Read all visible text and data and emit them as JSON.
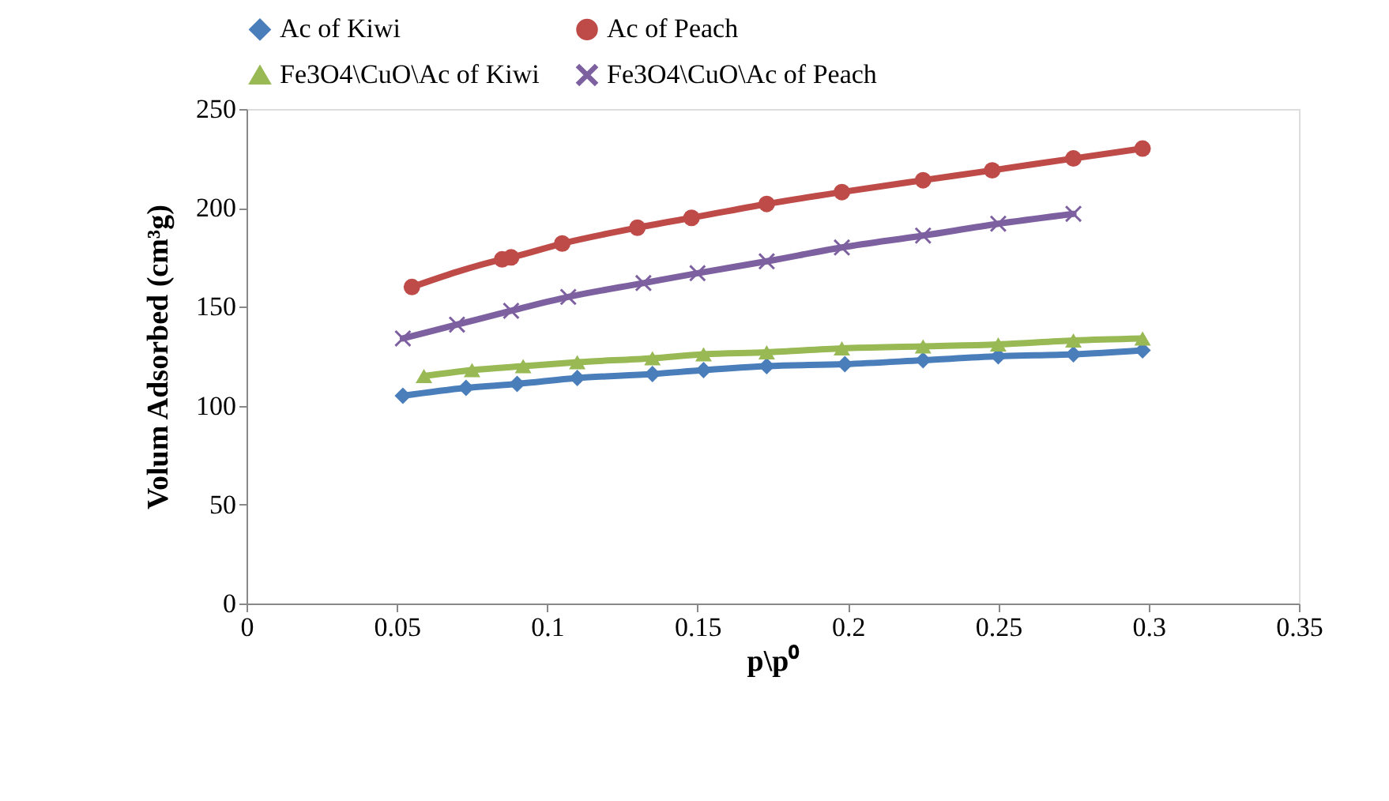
{
  "chart_data": {
    "type": "line",
    "xlabel": "p\\p⁰",
    "ylabel": "Volum Adsorbed (cm³g)",
    "xlim": [
      0,
      0.35
    ],
    "xticks": [
      0,
      0.05,
      0.1,
      0.15,
      0.2,
      0.25,
      0.3,
      0.35
    ],
    "ylim": [
      0,
      250
    ],
    "yticks": [
      0,
      50,
      100,
      150,
      200,
      250
    ],
    "grid": false,
    "legend": "top",
    "series": [
      {
        "name": "Ac of Kiwi",
        "color": "#4a7ebb",
        "marker": "diamond",
        "x": [
          0.052,
          0.073,
          0.09,
          0.11,
          0.135,
          0.152,
          0.173,
          0.199,
          0.225,
          0.25,
          0.275,
          0.298
        ],
        "values": [
          105,
          109,
          111,
          114,
          116,
          118,
          120,
          121,
          123,
          125,
          126,
          128
        ]
      },
      {
        "name": "Ac of Peach",
        "color": "#be4b48",
        "marker": "circle",
        "x": [
          0.055,
          0.085,
          0.088,
          0.105,
          0.13,
          0.148,
          0.173,
          0.198,
          0.225,
          0.248,
          0.275,
          0.298
        ],
        "values": [
          160,
          174,
          175,
          182,
          190,
          195,
          202,
          208,
          214,
          219,
          225,
          230
        ]
      },
      {
        "name": "Fe3O4\\CuO\\Ac of Kiwi",
        "color": "#98b954",
        "marker": "triangle",
        "x": [
          0.059,
          0.075,
          0.092,
          0.11,
          0.135,
          0.152,
          0.173,
          0.198,
          0.225,
          0.25,
          0.275,
          0.298
        ],
        "values": [
          115,
          118,
          120,
          122,
          124,
          126,
          127,
          129,
          130,
          131,
          133,
          134
        ]
      },
      {
        "name": "Fe3O4\\CuO\\Ac of Peach",
        "color": "#7d60a0",
        "marker": "cross",
        "x": [
          0.052,
          0.07,
          0.088,
          0.107,
          0.132,
          0.15,
          0.173,
          0.198,
          0.225,
          0.25,
          0.275
        ],
        "values": [
          134,
          141,
          148,
          155,
          162,
          167,
          173,
          180,
          186,
          192,
          197
        ]
      }
    ]
  }
}
